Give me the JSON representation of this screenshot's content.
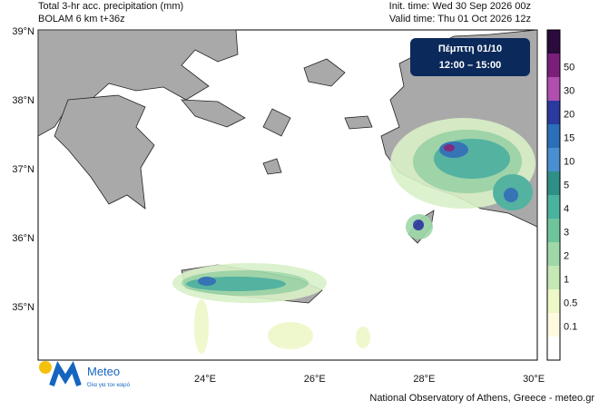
{
  "header": {
    "title": "Total 3-hr acc. precipitation (mm)",
    "model": "BOLAM 6 km t+36z",
    "init_time": "Init. time: Wed 30 Sep 2026 00z",
    "valid_time": "Valid time: Thu 01 Oct 2026 12z"
  },
  "badge": {
    "day": "Πέμπτη 01/10",
    "hours": "12:00 – 15:00"
  },
  "axes": {
    "latitudes": [
      "39°N",
      "38°N",
      "37°N",
      "36°N",
      "35°N"
    ],
    "longitudes": [
      "24°E",
      "26°E",
      "28°E",
      "30°E"
    ]
  },
  "colorbar": {
    "labels": [
      "50",
      "30",
      "20",
      "15",
      "10",
      "5",
      "4",
      "3",
      "2",
      "1",
      "0.5",
      "0.1"
    ]
  },
  "logo": {
    "name": "Meteo",
    "tagline": "Όλα για τον καιρό"
  },
  "footer": "National Observatory of Athens, Greece - meteo.gr"
}
